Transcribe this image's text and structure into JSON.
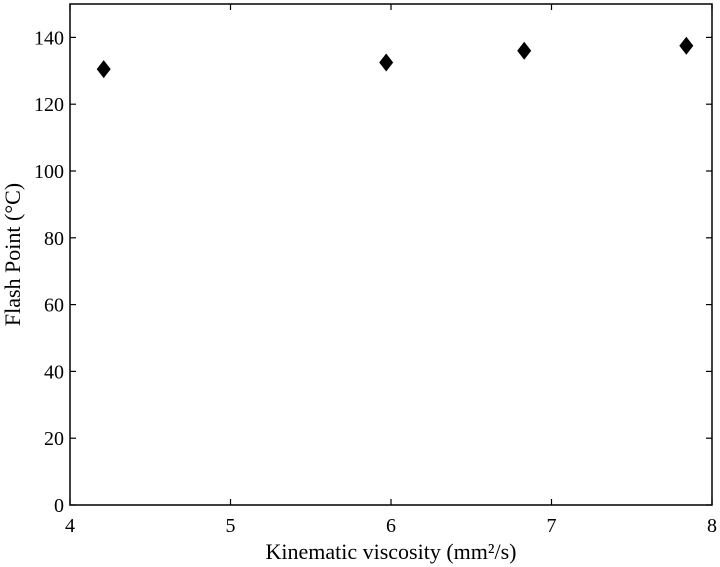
{
  "chart_data": {
    "type": "scatter",
    "xlabel": "Kinematic viscosity (mm²/s)",
    "ylabel": "Flash Point (°C)",
    "xlim": [
      4,
      8
    ],
    "ylim": [
      0,
      150
    ],
    "x_ticks": [
      "4",
      "5",
      "6",
      "7",
      "8"
    ],
    "y_ticks": [
      "0",
      "20",
      "40",
      "60",
      "80",
      "100",
      "120",
      "140"
    ],
    "grid": false,
    "legend": "none",
    "marker": "diamond",
    "marker_color": "#000000",
    "points": [
      {
        "x": 4.21,
        "y": 130.5
      },
      {
        "x": 5.97,
        "y": 132.5
      },
      {
        "x": 6.83,
        "y": 136.0
      },
      {
        "x": 7.84,
        "y": 137.5
      }
    ]
  }
}
